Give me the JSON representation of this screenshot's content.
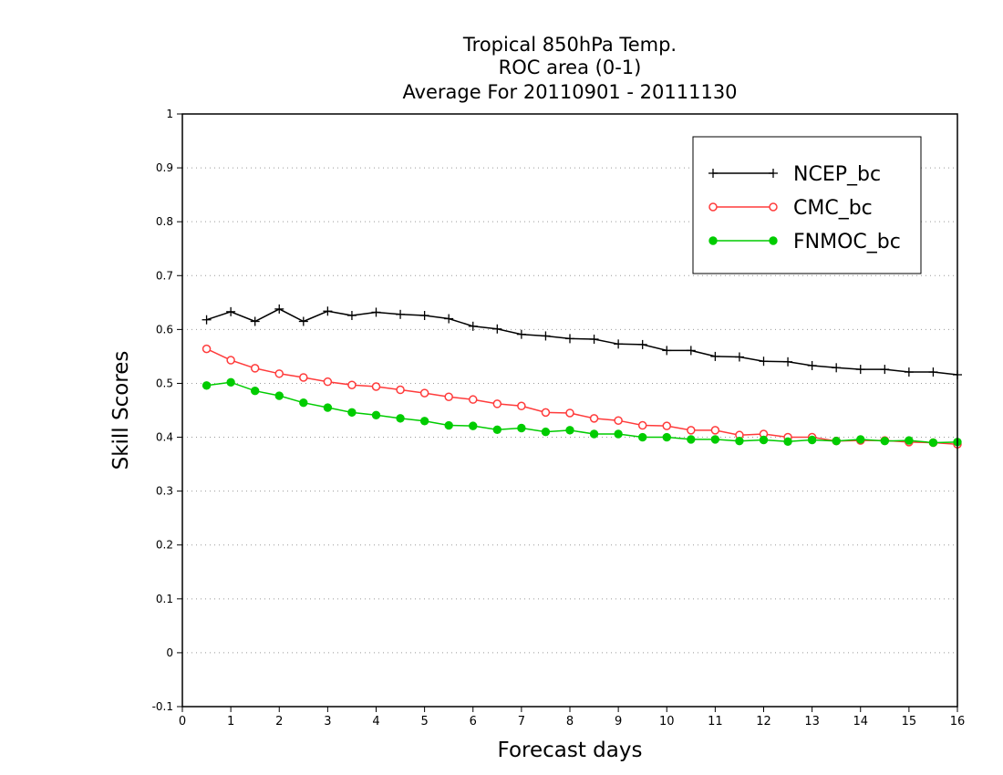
{
  "chart_data": {
    "type": "line",
    "title": [
      "Tropical 850hPa Temp.",
      "ROC area (0-1)",
      "Average For 20110901 - 20111130"
    ],
    "xlabel": "Forecast days",
    "ylabel": "Skill Scores",
    "xlim": [
      0,
      16
    ],
    "ylim": [
      -0.1,
      1
    ],
    "xticks": [
      "0",
      "1",
      "2",
      "3",
      "4",
      "5",
      "6",
      "7",
      "8",
      "9",
      "10",
      "11",
      "12",
      "13",
      "14",
      "15",
      "16"
    ],
    "yticks": [
      "-0.1",
      "0",
      "0.1",
      "0.2",
      "0.3",
      "0.4",
      "0.5",
      "0.6",
      "0.7",
      "0.8",
      "0.9",
      "1"
    ],
    "ytick_values": [
      -0.1,
      0,
      0.1,
      0.2,
      0.3,
      0.4,
      0.5,
      0.6,
      0.7,
      0.8,
      0.9,
      1
    ],
    "grid": "horizontal-dotted",
    "legend_position": "top-right",
    "x": [
      0.5,
      1,
      1.5,
      2,
      2.5,
      3,
      3.5,
      4,
      4.5,
      5,
      5.5,
      6,
      6.5,
      7,
      7.5,
      8,
      8.5,
      9,
      9.5,
      10,
      10.5,
      11,
      11.5,
      12,
      12.5,
      13,
      13.5,
      14,
      14.5,
      15,
      15.5,
      16
    ],
    "series": [
      {
        "name": "NCEP_bc",
        "color": "#000000",
        "marker": "plus",
        "values": [
          0.618,
          0.633,
          0.615,
          0.638,
          0.615,
          0.634,
          0.626,
          0.632,
          0.628,
          0.626,
          0.62,
          0.606,
          0.601,
          0.591,
          0.588,
          0.583,
          0.582,
          0.573,
          0.572,
          0.561,
          0.561,
          0.55,
          0.549,
          0.541,
          0.54,
          0.533,
          0.529,
          0.526,
          0.526,
          0.521,
          0.521,
          0.516
        ]
      },
      {
        "name": "CMC_bc",
        "color": "#ff3b3b",
        "marker": "open-circle",
        "values": [
          0.564,
          0.543,
          0.528,
          0.518,
          0.511,
          0.503,
          0.497,
          0.494,
          0.488,
          0.482,
          0.475,
          0.47,
          0.462,
          0.458,
          0.446,
          0.445,
          0.435,
          0.431,
          0.422,
          0.421,
          0.413,
          0.413,
          0.404,
          0.406,
          0.4,
          0.4,
          0.393,
          0.394,
          0.394,
          0.391,
          0.39,
          0.387
        ]
      },
      {
        "name": "FNMOC_bc",
        "color": "#00cc00",
        "marker": "filled-circle",
        "values": [
          0.496,
          0.502,
          0.486,
          0.477,
          0.464,
          0.455,
          0.446,
          0.441,
          0.435,
          0.43,
          0.422,
          0.421,
          0.414,
          0.417,
          0.41,
          0.413,
          0.406,
          0.406,
          0.4,
          0.4,
          0.396,
          0.396,
          0.393,
          0.395,
          0.392,
          0.395,
          0.393,
          0.396,
          0.393,
          0.394,
          0.39,
          0.391
        ]
      }
    ]
  }
}
